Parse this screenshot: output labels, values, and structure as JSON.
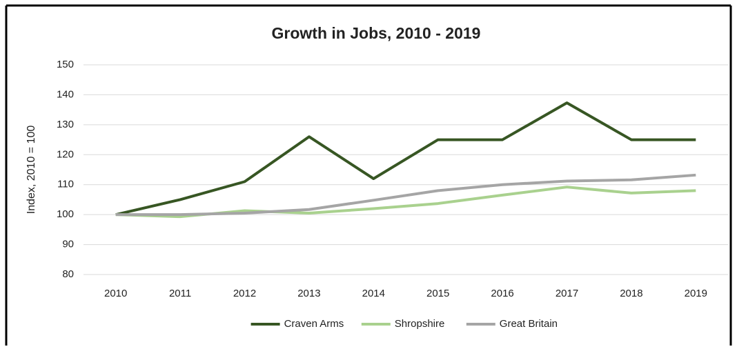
{
  "chart_data": {
    "type": "line",
    "title": "Growth in Jobs, 2010 - 2019",
    "y_label": "Index, 2010 = 100",
    "categories": [
      "2010",
      "2011",
      "2012",
      "2013",
      "2014",
      "2015",
      "2016",
      "2017",
      "2018",
      "2019"
    ],
    "series": [
      {
        "name": "Craven Arms",
        "color": "#375623",
        "values": [
          100,
          105,
          111,
          126,
          112,
          125,
          125,
          137.3,
          125,
          125
        ]
      },
      {
        "name": "Shropshire",
        "color": "#a9d18e",
        "values": [
          100,
          99.3,
          101.3,
          100.5,
          102,
          103.7,
          106.5,
          109.2,
          107.2,
          108
        ]
      },
      {
        "name": "Great Britain",
        "color": "#a5a5a5",
        "values": [
          100,
          100,
          100.5,
          101.7,
          104.8,
          108,
          110,
          111.2,
          111.6,
          113.2
        ]
      }
    ],
    "ylim": [
      80,
      150
    ],
    "yticks": [
      80,
      90,
      100,
      110,
      120,
      130,
      140,
      150
    ],
    "grid": true,
    "legend": "bottom"
  }
}
